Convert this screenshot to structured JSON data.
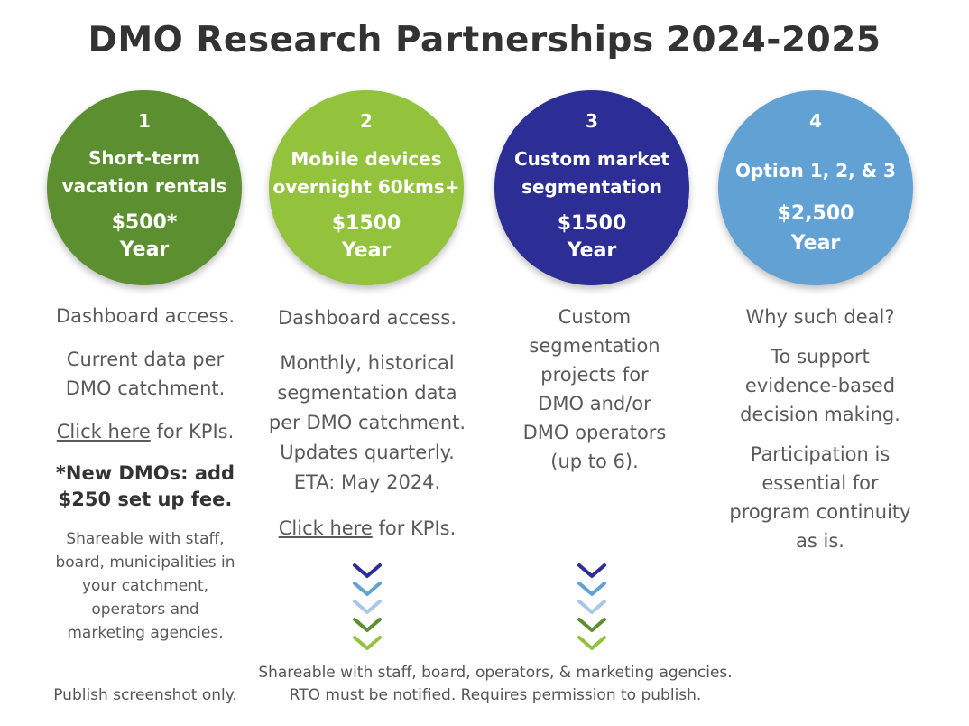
{
  "title": "DMO Research Partnerships 2024-2025",
  "options": [
    {
      "number": "1",
      "name_lines": [
        "Short-term",
        "vacation rentals"
      ],
      "price": "$500*",
      "period": "Year",
      "color": "#5c8f30"
    },
    {
      "number": "2",
      "name_lines": [
        "Mobile devices",
        "overnight 60kms+"
      ],
      "price": "$1500",
      "period": "Year",
      "color": "#93c23c"
    },
    {
      "number": "3",
      "name_lines": [
        "Custom market",
        "segmentation"
      ],
      "price": "$1500",
      "period": "Year",
      "color": "#2c2e95"
    },
    {
      "number": "4",
      "name_lines": [
        "Option 1, 2, & 3"
      ],
      "price": "$2,500",
      "period": "Year",
      "color": "#62a1d4"
    }
  ],
  "col1": {
    "dashboard": "Dashboard access.",
    "current_lines": [
      "Current data per",
      "DMO catchment."
    ],
    "link": "Click here",
    "link_suffix": " for KPIs.",
    "new_dmos_lines": [
      "*New DMOs: add",
      "$250 set up fee."
    ],
    "shareable_lines": [
      "Shareable with staff,",
      "board, municipalities in",
      "your catchment,",
      "operators and",
      "marketing agencies."
    ],
    "publish": "Publish screenshot only."
  },
  "col2": {
    "dashboard": "Dashboard access.",
    "monthly_lines": [
      "Monthly, historical",
      "segmentation data",
      "per DMO catchment.",
      "Updates quarterly.",
      "ETA: May 2024."
    ],
    "link": "Click here",
    "link_suffix": " for KPIs."
  },
  "col3": {
    "custom_lines": [
      "Custom",
      "segmentation",
      "projects for",
      "DMO and/or",
      "DMO operators",
      "(up to 6)."
    ]
  },
  "col4": {
    "why": "Why such deal?",
    "support_lines": [
      "To support",
      "evidence-based",
      "decision making."
    ],
    "participation_lines": [
      "Participation is",
      "essential for",
      "program  continuity",
      "as is."
    ]
  },
  "footer": {
    "line1": "Shareable with staff, board, operators, & marketing agencies.",
    "line2": "RTO must be notified. Requires permission to publish."
  },
  "chevron_colors": [
    "#2c2e95",
    "#62a1d4",
    "#a9c8e8",
    "#5c8f30",
    "#93c23c"
  ]
}
